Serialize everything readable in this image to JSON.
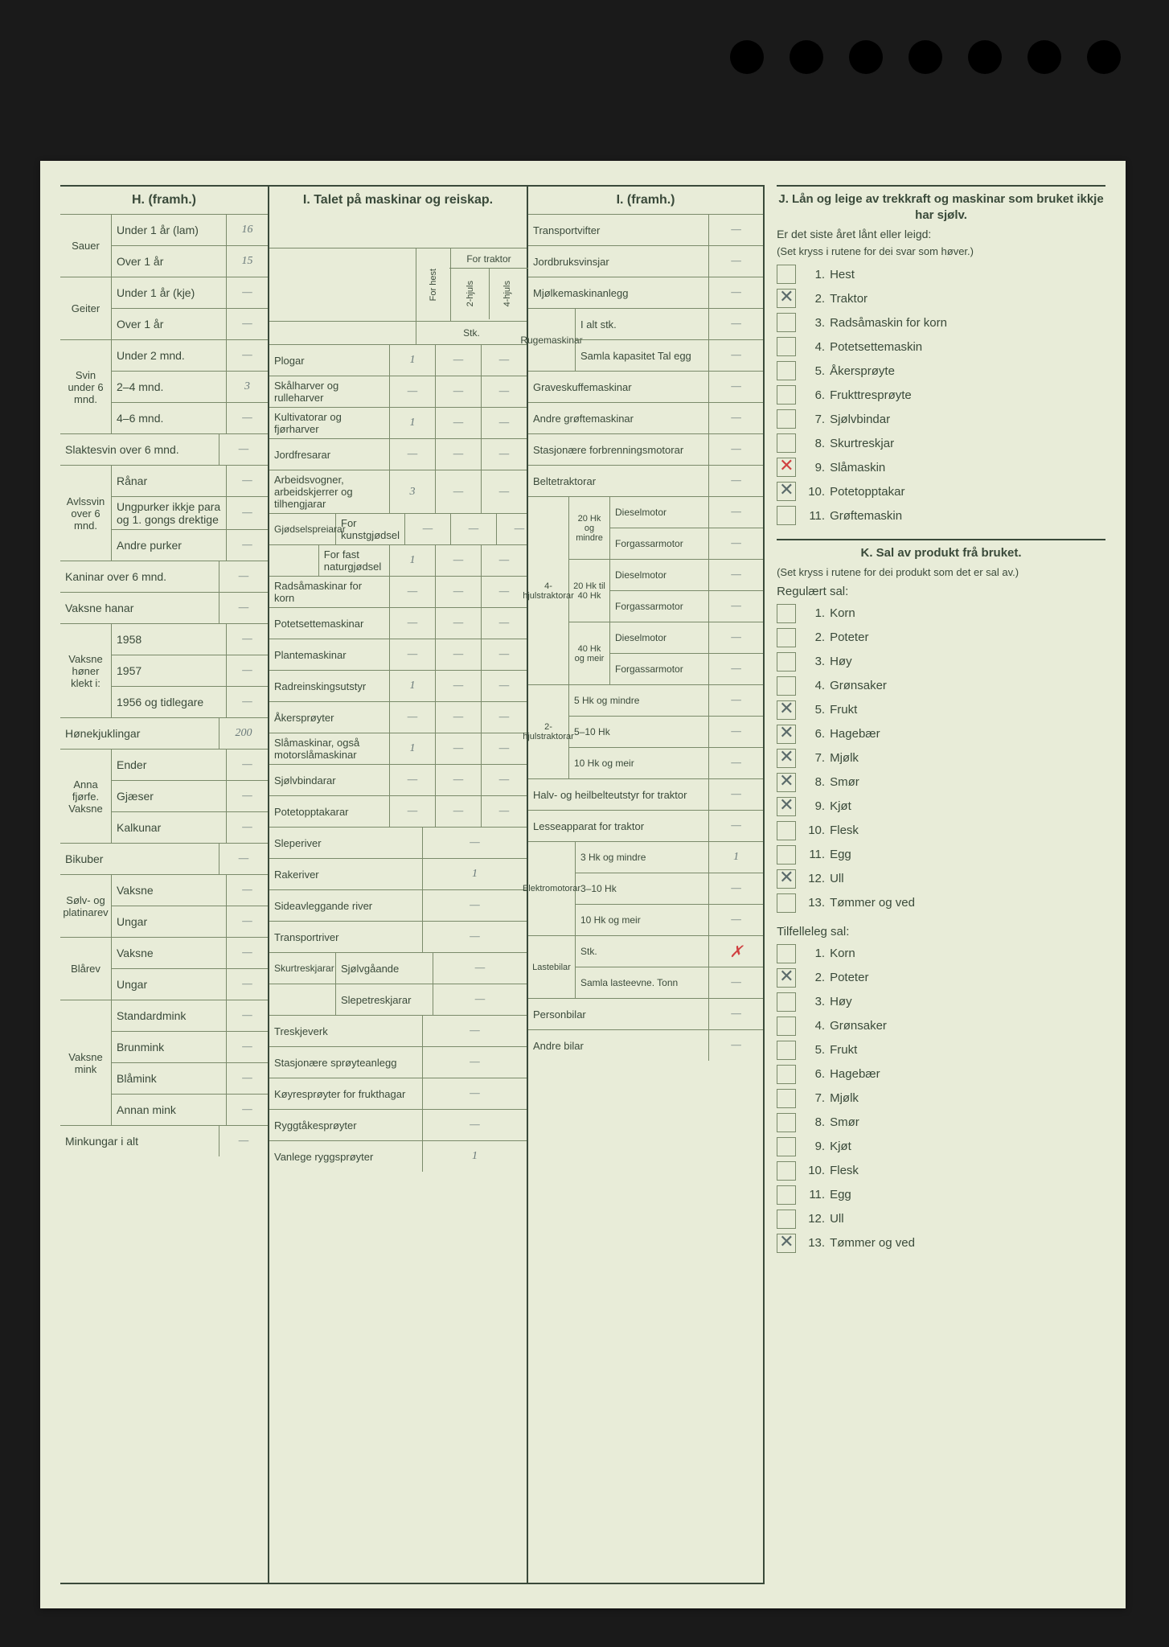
{
  "colors": {
    "paper_bg": "#e8ecd8",
    "page_bg": "#1a1a1a",
    "ink": "#3a4a3a",
    "rule": "#7a8a6a",
    "handwriting": "#6a7a7a",
    "red": "#d04040"
  },
  "H": {
    "title": "H. (framh.)",
    "groups": [
      {
        "side": "Sauer",
        "rows": [
          {
            "label": "Under 1 år (lam)",
            "val": "16"
          },
          {
            "label": "Over 1 år",
            "val": "15"
          }
        ]
      },
      {
        "side": "Geiter",
        "rows": [
          {
            "label": "Under 1 år (kje)",
            "val": "—"
          },
          {
            "label": "Over 1 år",
            "val": "—"
          }
        ]
      },
      {
        "side": "Svin under 6 mnd.",
        "rows": [
          {
            "label": "Under 2 mnd.",
            "val": "—"
          },
          {
            "label": "2–4 mnd.",
            "val": "3"
          },
          {
            "label": "4–6 mnd.",
            "val": "—"
          }
        ]
      },
      {
        "side": "",
        "rows": [
          {
            "label": "Slaktesvin over 6 mnd.",
            "val": "—"
          }
        ]
      },
      {
        "side": "Avlssvin over 6 mnd.",
        "rows": [
          {
            "label": "Rånar",
            "val": "—"
          },
          {
            "label": "Ungpurker ikkje para og 1. gongs drektige",
            "val": "—"
          },
          {
            "label": "Andre purker",
            "val": "—"
          }
        ]
      },
      {
        "side": "",
        "rows": [
          {
            "label": "Kaninar over 6 mnd.",
            "val": "—"
          },
          {
            "label": "Vaksne hanar",
            "val": "—"
          }
        ]
      },
      {
        "side": "Vaksne høner klekt i:",
        "rows": [
          {
            "label": "1958",
            "val": "—"
          },
          {
            "label": "1957",
            "val": "—"
          },
          {
            "label": "1956 og tidlegare",
            "val": "—"
          }
        ]
      },
      {
        "side": "",
        "rows": [
          {
            "label": "Hønekjuklingar",
            "val": "200"
          }
        ]
      },
      {
        "side": "Anna fjørfe. Vaksne",
        "rows": [
          {
            "label": "Ender",
            "val": "—"
          },
          {
            "label": "Gjæser",
            "val": "—"
          },
          {
            "label": "Kalkunar",
            "val": "—"
          }
        ]
      },
      {
        "side": "",
        "rows": [
          {
            "label": "Bikuber",
            "val": "—"
          }
        ]
      },
      {
        "side": "Sølv- og platinarev",
        "rows": [
          {
            "label": "Vaksne",
            "val": "—"
          },
          {
            "label": "Ungar",
            "val": "—"
          }
        ]
      },
      {
        "side": "Blårev",
        "rows": [
          {
            "label": "Vaksne",
            "val": "—"
          },
          {
            "label": "Ungar",
            "val": "—"
          }
        ]
      },
      {
        "side": "Vaksne mink",
        "rows": [
          {
            "label": "Standardmink",
            "val": "—"
          },
          {
            "label": "Brunmink",
            "val": "—"
          },
          {
            "label": "Blåmink",
            "val": "—"
          },
          {
            "label": "Annan mink",
            "val": "—"
          }
        ]
      },
      {
        "side": "",
        "rows": [
          {
            "label": "Minkungar i alt",
            "val": "—"
          }
        ]
      }
    ]
  },
  "I": {
    "title": "I. Talet på maskinar og reiskap.",
    "sub_headers": {
      "hest": "For hest",
      "traktor": "For traktor",
      "h2": "2-hjuls",
      "h4": "4-hjuls",
      "stk": "Stk."
    },
    "rows": [
      {
        "label": "Plogar",
        "vals": [
          "1",
          "—",
          "—"
        ]
      },
      {
        "label": "Skålharver og rulleharver",
        "vals": [
          "—",
          "—",
          "—"
        ]
      },
      {
        "label": "Kultivatorar og fjørharver",
        "vals": [
          "1",
          "—",
          "—"
        ]
      },
      {
        "label": "Jordfresarar",
        "vals": [
          "—",
          "—",
          "—"
        ]
      },
      {
        "label": "Arbeidsvogner, arbeidskjerrer og tilhengjarar",
        "vals": [
          "3",
          "—",
          "—"
        ]
      },
      {
        "label2": "Gjødselspreiarar",
        "sub": "For kunstgjødsel",
        "vals": [
          "—",
          "—",
          "—"
        ]
      },
      {
        "sub": "For fast naturgjødsel",
        "vals": [
          "1",
          "—",
          "—"
        ]
      },
      {
        "label": "Radsåmaskinar for korn",
        "vals": [
          "—",
          "—",
          "—"
        ]
      },
      {
        "label": "Potetsettemaskinar",
        "vals": [
          "—",
          "—",
          "—"
        ]
      },
      {
        "label": "Plantemaskinar",
        "vals": [
          "—",
          "—",
          "—"
        ]
      },
      {
        "label": "Radreinskingsutstyr",
        "vals": [
          "1",
          "—",
          "—"
        ]
      },
      {
        "label": "Åkersprøyter",
        "vals": [
          "—",
          "—",
          "—"
        ]
      },
      {
        "label": "Slåmaskinar, også motorslåmaskinar",
        "vals": [
          "1",
          "—",
          "—"
        ]
      },
      {
        "label": "Sjølvbindarar",
        "vals": [
          "—",
          "—",
          "—"
        ]
      },
      {
        "label": "Potetopptakarar",
        "vals": [
          "—",
          "—",
          "—"
        ]
      },
      {
        "label": "Sleperiver",
        "vals": [
          "—"
        ],
        "single": true
      },
      {
        "label": "Rakeriver",
        "vals": [
          "1"
        ],
        "single": true
      },
      {
        "label": "Sideavleggande river",
        "vals": [
          "—"
        ],
        "single": true
      },
      {
        "label": "Transportriver",
        "vals": [
          "—"
        ],
        "single": true
      },
      {
        "label2": "Skurtreskjarar",
        "sub": "Sjølvgåande",
        "vals": [
          "—"
        ],
        "single": true
      },
      {
        "sub": "Slepetreskjarar",
        "vals": [
          "—"
        ],
        "single": true
      },
      {
        "label": "Treskjeverk",
        "vals": [
          "—"
        ],
        "single": true
      },
      {
        "label": "Stasjonære sprøyteanlegg",
        "vals": [
          "—"
        ],
        "single": true
      },
      {
        "label": "Køyresprøyter for frukthagar",
        "vals": [
          "—"
        ],
        "single": true
      },
      {
        "label": "Ryggtåkesprøyter",
        "vals": [
          "—"
        ],
        "single": true
      },
      {
        "label": "Vanlege ryggsprøyter",
        "vals": [
          "1"
        ],
        "single": true
      }
    ]
  },
  "I2": {
    "title": "I. (framh.)",
    "top_rows": [
      {
        "label": "Transportvifter",
        "val": "—"
      },
      {
        "label": "Jordbruksvinsjar",
        "val": "—"
      },
      {
        "label": "Mjølkemaskinanlegg",
        "val": "—"
      }
    ],
    "ruge": {
      "side": "Rugemaskinar",
      "r1": "I alt stk.",
      "r2": "Samla kapasitet Tal egg",
      "v1": "—",
      "v2": "—"
    },
    "mid_rows": [
      {
        "label": "Graveskuffemaskinar",
        "val": "—"
      },
      {
        "label": "Andre grøftemaskinar",
        "val": "—",
        "red": true
      },
      {
        "label": "Stasjonære forbrenningsmotorar",
        "val": "—"
      },
      {
        "label": "Beltetraktorar",
        "val": "—"
      }
    ],
    "traktor4": {
      "side": "4-hjulstraktorar",
      "groups": [
        {
          "hk": "20 Hk og mindre",
          "rows": [
            {
              "l": "Dieselmotor",
              "v": "—"
            },
            {
              "l": "Forgassarmotor",
              "v": "—"
            }
          ]
        },
        {
          "hk": "20 Hk til 40 Hk",
          "rows": [
            {
              "l": "Dieselmotor",
              "v": "—"
            },
            {
              "l": "Forgassarmotor",
              "v": "—"
            }
          ]
        },
        {
          "hk": "40 Hk og meir",
          "rows": [
            {
              "l": "Dieselmotor",
              "v": "—"
            },
            {
              "l": "Forgassarmotor",
              "v": "—"
            }
          ]
        }
      ]
    },
    "traktor2": {
      "side": "2-hjulstraktorar",
      "rows": [
        {
          "l": "5 Hk og mindre",
          "v": "—"
        },
        {
          "l": "5–10 Hk",
          "v": "—"
        },
        {
          "l": "10 Hk og meir",
          "v": "—"
        }
      ]
    },
    "bottom": [
      {
        "label": "Halv- og heilbelteutstyr for traktor",
        "val": "—"
      },
      {
        "label": "Lesseapparat for traktor",
        "val": "—"
      }
    ],
    "elektro": {
      "side": "Elektromotorar",
      "rows": [
        {
          "l": "3 Hk og mindre",
          "v": "1"
        },
        {
          "l": "3–10 Hk",
          "v": "—"
        },
        {
          "l": "10 Hk og meir",
          "v": "—"
        }
      ]
    },
    "laste": {
      "side": "Lastebilar",
      "r1": "Stk.",
      "r2": "Samla lasteevne. Tonn",
      "v1": "",
      "v1red": true,
      "v2": "—"
    },
    "last_rows": [
      {
        "label": "Personbilar",
        "val": "—"
      },
      {
        "label": "Andre bilar",
        "val": "—"
      }
    ]
  },
  "J": {
    "title": "J. Lån og leige av trekkraft og maskinar som bruket ikkje har sjølv.",
    "sub": "Er det siste året lånt eller leigd:",
    "note": "(Set kryss i rutene for dei svar som høver.)",
    "items": [
      {
        "n": "1.",
        "l": "Hest",
        "x": false
      },
      {
        "n": "2.",
        "l": "Traktor",
        "x": true
      },
      {
        "n": "3.",
        "l": "Radsåmaskin for korn",
        "x": false
      },
      {
        "n": "4.",
        "l": "Potetsettemaskin",
        "x": false
      },
      {
        "n": "5.",
        "l": "Åkersprøyte",
        "x": false
      },
      {
        "n": "6.",
        "l": "Frukttresprøyte",
        "x": false
      },
      {
        "n": "7.",
        "l": "Sjølvbindar",
        "x": false
      },
      {
        "n": "8.",
        "l": "Skurtreskjar",
        "x": false
      },
      {
        "n": "9.",
        "l": "Slåmaskin",
        "x": false,
        "red": true
      },
      {
        "n": "10.",
        "l": "Potetopptakar",
        "x": true
      },
      {
        "n": "11.",
        "l": "Grøftemaskin",
        "x": false
      }
    ]
  },
  "K": {
    "title": "K. Sal av produkt frå bruket.",
    "note": "(Set kryss i rutene for dei produkt som det er sal av.)",
    "reg_title": "Regulært sal:",
    "reg": [
      {
        "n": "1.",
        "l": "Korn",
        "x": false
      },
      {
        "n": "2.",
        "l": "Poteter",
        "x": false
      },
      {
        "n": "3.",
        "l": "Høy",
        "x": false
      },
      {
        "n": "4.",
        "l": "Grønsaker",
        "x": false
      },
      {
        "n": "5.",
        "l": "Frukt",
        "x": true
      },
      {
        "n": "6.",
        "l": "Hagebær",
        "x": true
      },
      {
        "n": "7.",
        "l": "Mjølk",
        "x": true
      },
      {
        "n": "8.",
        "l": "Smør",
        "x": true
      },
      {
        "n": "9.",
        "l": "Kjøt",
        "x": true
      },
      {
        "n": "10.",
        "l": "Flesk",
        "x": false
      },
      {
        "n": "11.",
        "l": "Egg",
        "x": false
      },
      {
        "n": "12.",
        "l": "Ull",
        "x": true
      },
      {
        "n": "13.",
        "l": "Tømmer og ved",
        "x": false
      }
    ],
    "til_title": "Tilfelleleg sal:",
    "til": [
      {
        "n": "1.",
        "l": "Korn",
        "x": false
      },
      {
        "n": "2.",
        "l": "Poteter",
        "x": true
      },
      {
        "n": "3.",
        "l": "Høy",
        "x": false
      },
      {
        "n": "4.",
        "l": "Grønsaker",
        "x": false
      },
      {
        "n": "5.",
        "l": "Frukt",
        "x": false
      },
      {
        "n": "6.",
        "l": "Hagebær",
        "x": false
      },
      {
        "n": "7.",
        "l": "Mjølk",
        "x": false
      },
      {
        "n": "8.",
        "l": "Smør",
        "x": false
      },
      {
        "n": "9.",
        "l": "Kjøt",
        "x": false
      },
      {
        "n": "10.",
        "l": "Flesk",
        "x": false
      },
      {
        "n": "11.",
        "l": "Egg",
        "x": false
      },
      {
        "n": "12.",
        "l": "Ull",
        "x": false
      },
      {
        "n": "13.",
        "l": "Tømmer og ved",
        "x": true
      }
    ]
  }
}
